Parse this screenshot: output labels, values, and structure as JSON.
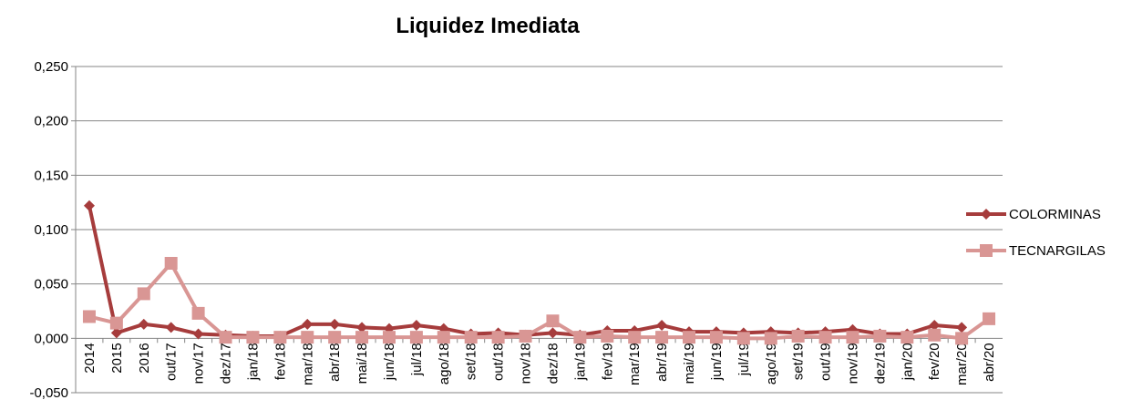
{
  "chart_data": {
    "type": "line",
    "title": "Liquidez Imediata",
    "categories": [
      "2014",
      "2015",
      "2016",
      "out/17",
      "nov/17",
      "dez/17",
      "jan/18",
      "fev/18",
      "mar/18",
      "abr/18",
      "mai/18",
      "jun/18",
      "jul/18",
      "ago/18",
      "set/18",
      "out/18",
      "nov/18",
      "dez/18",
      "jan/19",
      "fev/19",
      "mar/19",
      "abr/19",
      "mai/19",
      "jun/19",
      "jul/19",
      "ago/19",
      "set/19",
      "out/19",
      "nov/19",
      "dez/19",
      "jan/20",
      "fev/20",
      "mar/20",
      "abr/20"
    ],
    "series": [
      {
        "name": "COLORMINAS",
        "color": "#a63c3c",
        "marker": "diamond",
        "values": [
          0.122,
          0.005,
          0.013,
          0.01,
          0.004,
          0.003,
          0.002,
          0.002,
          0.013,
          0.013,
          0.01,
          0.009,
          0.012,
          0.009,
          0.004,
          0.005,
          0.003,
          0.005,
          0.003,
          0.007,
          0.007,
          0.012,
          0.006,
          0.006,
          0.005,
          0.006,
          0.005,
          0.006,
          0.008,
          0.004,
          0.004,
          0.012,
          0.01,
          null
        ]
      },
      {
        "name": "TECNARGILAS",
        "color": "#d99694",
        "marker": "square",
        "values": [
          0.02,
          0.014,
          0.041,
          0.069,
          0.023,
          0.001,
          0.001,
          0.001,
          0.001,
          0.001,
          0.001,
          0.001,
          0.001,
          0.001,
          0.001,
          0.001,
          0.002,
          0.016,
          0.001,
          0.002,
          0.001,
          0.001,
          0.001,
          0.001,
          0.0,
          0.0,
          0.002,
          0.001,
          0.001,
          0.002,
          0.001,
          0.003,
          0.0,
          0.018
        ]
      }
    ],
    "ylim": [
      -0.05,
      0.25
    ],
    "yticks": [
      {
        "value": -0.05,
        "label": "-0,050"
      },
      {
        "value": 0,
        "label": "0,000"
      },
      {
        "value": 0.05,
        "label": "0,050"
      },
      {
        "value": 0.1,
        "label": "0,100"
      },
      {
        "value": 0.15,
        "label": "0,150"
      },
      {
        "value": 0.2,
        "label": "0,200"
      },
      {
        "value": 0.25,
        "label": "0,250"
      }
    ],
    "grid": true,
    "legend": "right"
  }
}
